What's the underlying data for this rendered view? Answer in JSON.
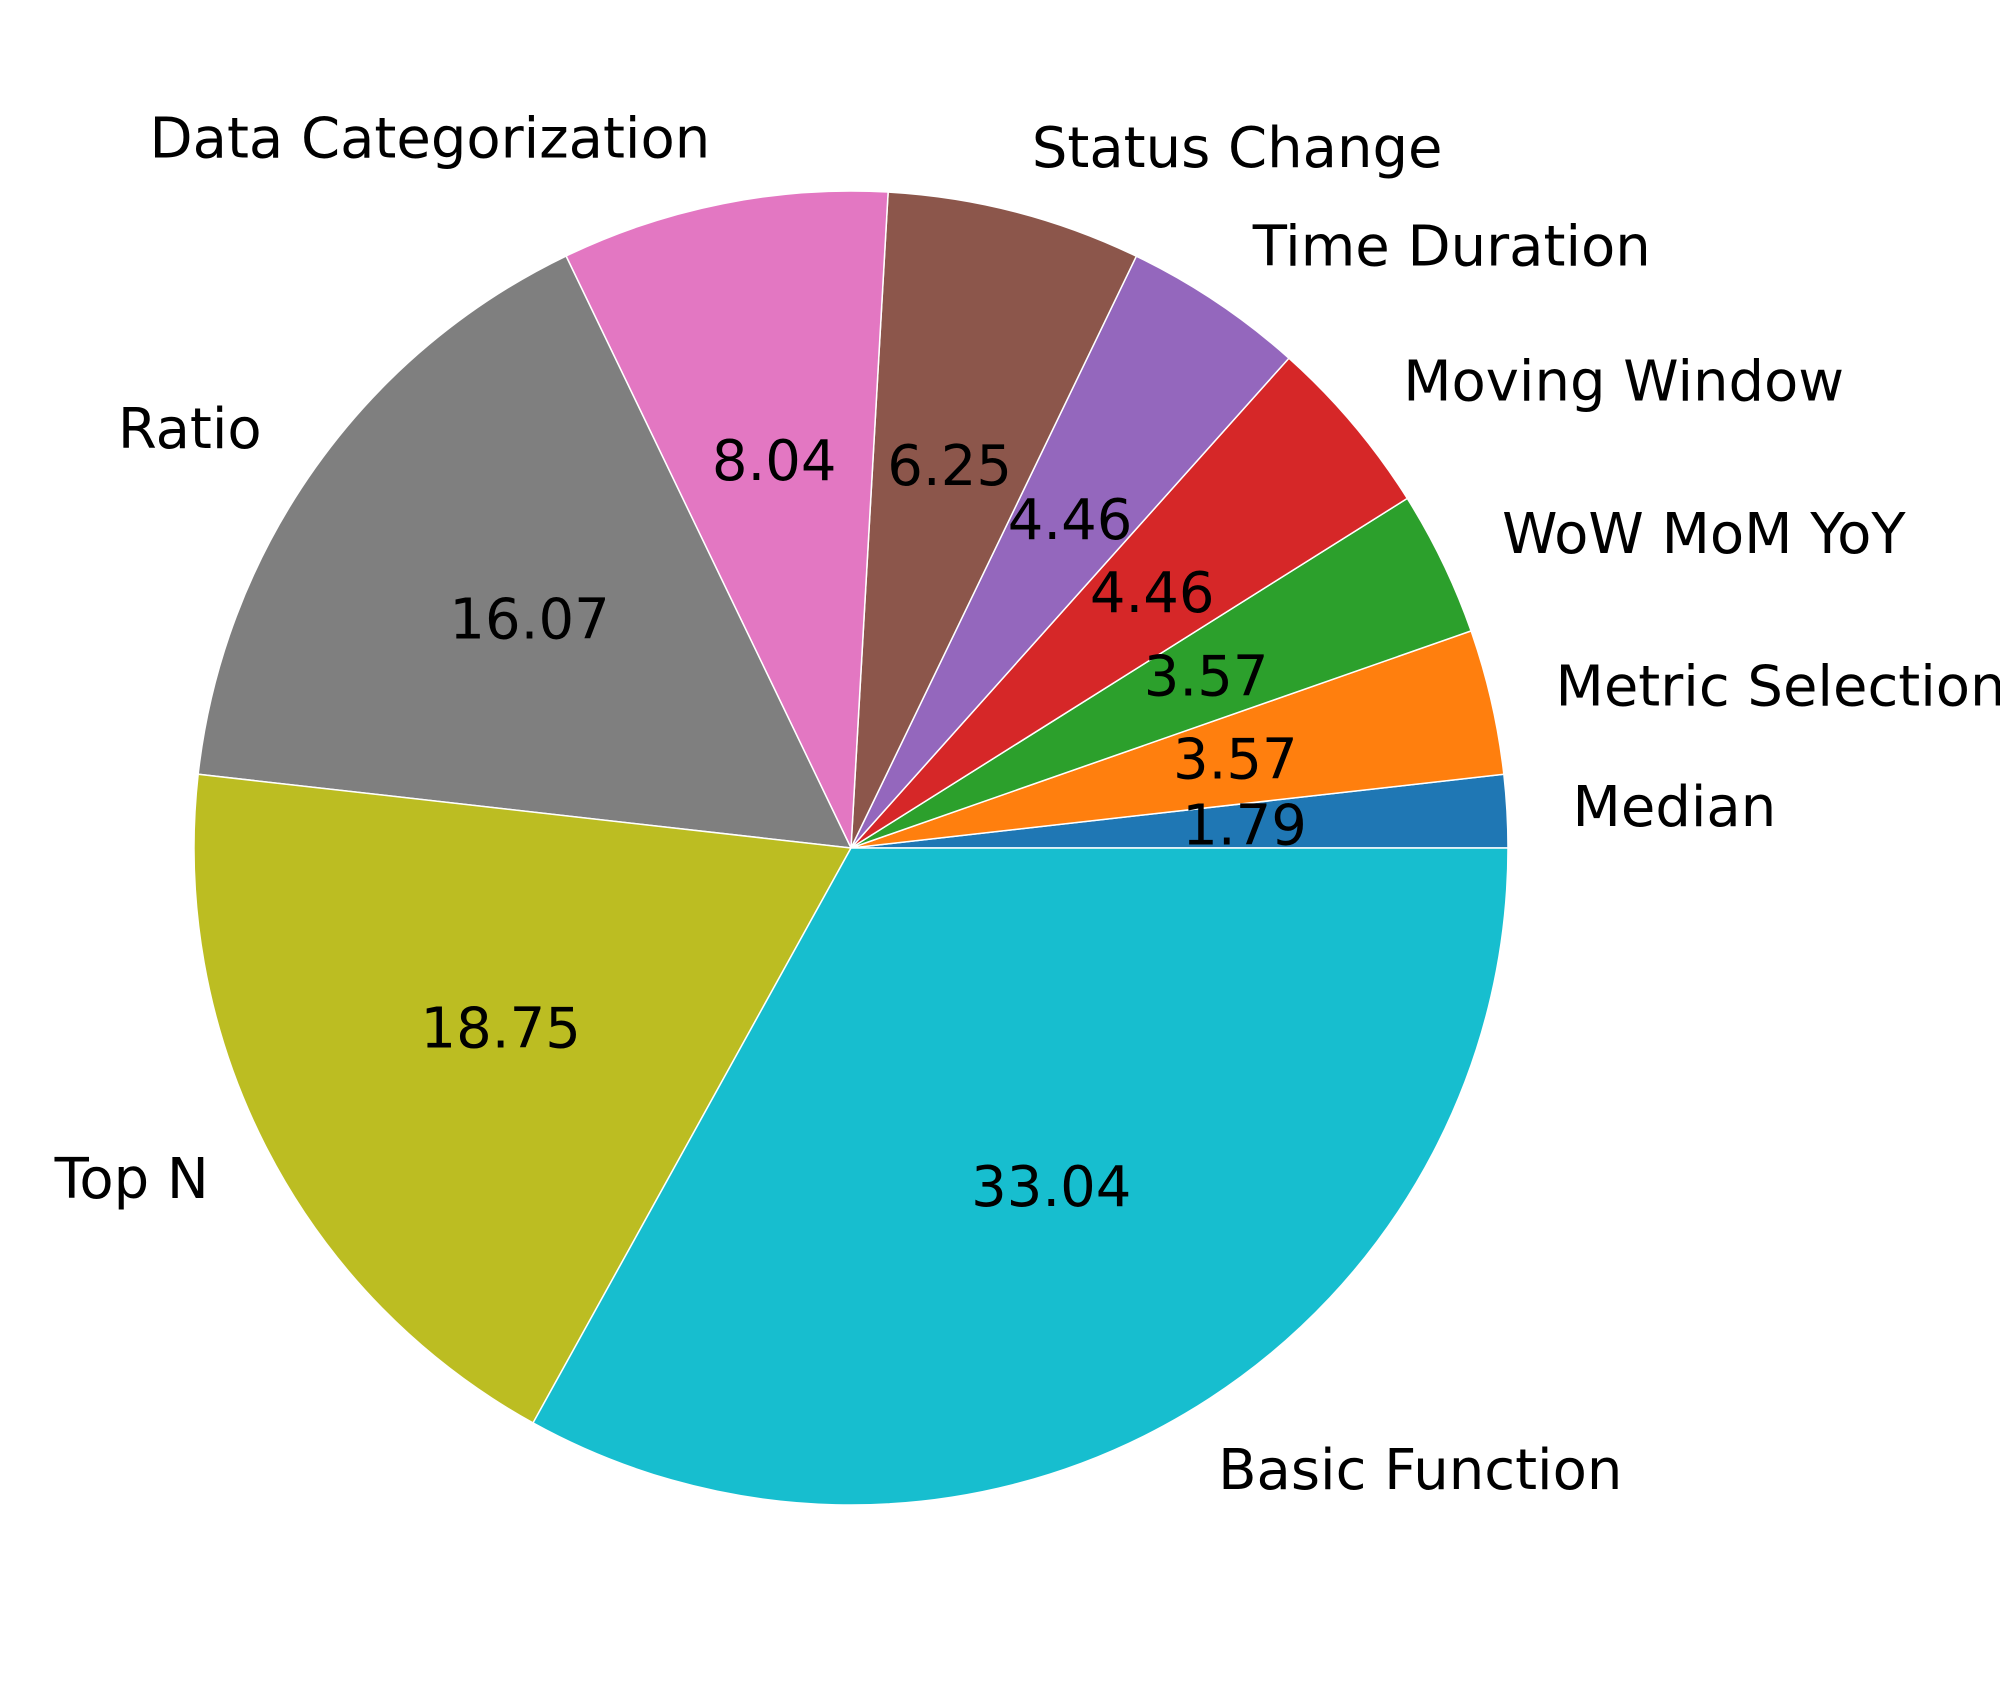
{
  "chart_data": {
    "type": "pie",
    "start_angle_deg": 0,
    "direction": "counterclockwise",
    "slices": [
      {
        "label": "Median",
        "value": 1.79,
        "value_label": "1.79",
        "color": "#1f77b4"
      },
      {
        "label": "Metric Selection",
        "value": 3.57,
        "value_label": "3.57",
        "color": "#ff7f0e"
      },
      {
        "label": "WoW MoM YoY",
        "value": 3.57,
        "value_label": "3.57",
        "color": "#2ca02c"
      },
      {
        "label": "Moving Window",
        "value": 4.46,
        "value_label": "4.46",
        "color": "#d62728"
      },
      {
        "label": "Time Duration",
        "value": 4.46,
        "value_label": "4.46",
        "color": "#9467bd"
      },
      {
        "label": "Status Change",
        "value": 6.25,
        "value_label": "6.25",
        "color": "#8c564b"
      },
      {
        "label": "Data Categorization",
        "value": 8.04,
        "value_label": "8.04",
        "color": "#e377c2"
      },
      {
        "label": "Ratio",
        "value": 16.07,
        "value_label": "16.07",
        "color": "#7f7f7f"
      },
      {
        "label": "Top N",
        "value": 18.75,
        "value_label": "18.75",
        "color": "#bcbd22"
      },
      {
        "label": "Basic Function",
        "value": 33.04,
        "value_label": "33.04",
        "color": "#17becf"
      }
    ]
  }
}
